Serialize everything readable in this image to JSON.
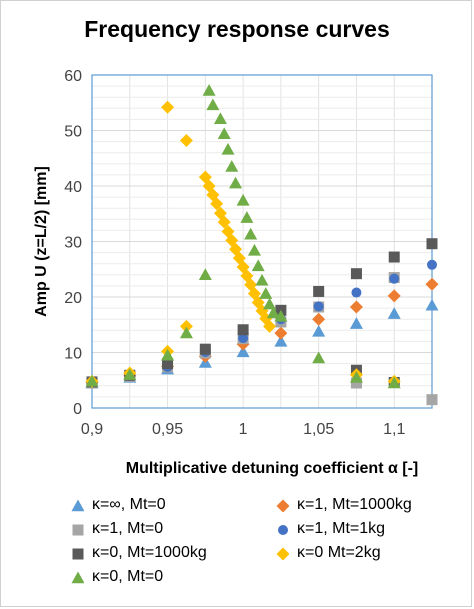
{
  "chart_data": {
    "type": "scatter",
    "title": "Frequency response curves",
    "xlabel": "Multiplicative detuning coefficient α [-]",
    "ylabel": "Amp U (z=L/2) [mm]",
    "xlim": [
      0.9,
      1.125
    ],
    "ylim": [
      0,
      60
    ],
    "x_ticks": [
      "0,9",
      "0,95",
      "1",
      "1,05",
      "1,1"
    ],
    "y_ticks": [
      "0",
      "10",
      "20",
      "30",
      "40",
      "50",
      "60"
    ],
    "grid": true,
    "legend_position": "bottom",
    "series": [
      {
        "name": "κ=∞, Mt=0",
        "marker": "triangle",
        "color": "#5b9bd5",
        "points": [
          [
            0.9,
            4.5
          ],
          [
            0.925,
            5.5
          ],
          [
            0.95,
            7
          ],
          [
            0.975,
            8.2
          ],
          [
            1.0,
            10.1
          ],
          [
            1.025,
            12
          ],
          [
            1.05,
            13.8
          ],
          [
            1.075,
            15.2
          ],
          [
            1.1,
            17
          ],
          [
            1.125,
            18.5
          ]
        ]
      },
      {
        "name": "κ=1, Mt=1000kg",
        "marker": "diamond",
        "color": "#ed7d31",
        "points": [
          [
            0.9,
            4.6
          ],
          [
            0.925,
            5.8
          ],
          [
            0.95,
            7.5
          ],
          [
            0.975,
            9.3
          ],
          [
            1.0,
            11.5
          ],
          [
            1.025,
            13.5
          ],
          [
            1.05,
            16
          ],
          [
            1.075,
            18.2
          ],
          [
            1.1,
            20.2
          ],
          [
            1.125,
            22.3
          ]
        ]
      },
      {
        "name": "κ=1, Mt=0",
        "marker": "square",
        "color": "#a5a5a5",
        "points": [
          [
            0.9,
            4.5
          ],
          [
            0.925,
            5.7
          ],
          [
            0.95,
            7.4
          ],
          [
            0.975,
            9.9
          ],
          [
            1.0,
            12.5
          ],
          [
            1.025,
            15.5
          ],
          [
            1.05,
            18.2
          ],
          [
            1.075,
            4.5
          ],
          [
            1.1,
            23.5
          ],
          [
            1.125,
            1.5
          ]
        ]
      },
      {
        "name": "κ=1, Mt=1kg",
        "marker": "circle",
        "color": "#4472c4",
        "points": [
          [
            0.9,
            4.6
          ],
          [
            0.925,
            5.8
          ],
          [
            0.95,
            7.4
          ],
          [
            0.975,
            10.1
          ],
          [
            1.0,
            12.6
          ],
          [
            1.025,
            16
          ],
          [
            1.05,
            18.3
          ],
          [
            1.075,
            20.8
          ],
          [
            1.1,
            23.3
          ],
          [
            1.125,
            25.8
          ]
        ]
      },
      {
        "name": "κ=0, Mt=1000kg",
        "marker": "square",
        "color": "#595959",
        "points": [
          [
            0.9,
            4.7
          ],
          [
            0.925,
            5.9
          ],
          [
            0.95,
            8
          ],
          [
            0.975,
            10.6
          ],
          [
            1.0,
            14.1
          ],
          [
            1.025,
            17.6
          ],
          [
            1.05,
            21
          ],
          [
            1.075,
            24.2
          ],
          [
            1.1,
            27.2
          ],
          [
            1.125,
            29.6
          ],
          [
            1.075,
            6.8
          ],
          [
            1.1,
            4.6
          ]
        ]
      },
      {
        "name": "κ=0 Mt=2kg",
        "marker": "diamond",
        "color": "#ffc000",
        "points": [
          [
            0.9,
            4.8
          ],
          [
            0.925,
            6.3
          ],
          [
            0.95,
            10.2
          ],
          [
            0.9625,
            14.7
          ],
          [
            0.95,
            54.2
          ],
          [
            0.9625,
            48.2
          ],
          [
            0.975,
            41.6
          ],
          [
            0.9775,
            40
          ],
          [
            0.98,
            38.4
          ],
          [
            0.9825,
            36.8
          ],
          [
            0.985,
            35.1
          ],
          [
            0.9875,
            33.5
          ],
          [
            0.99,
            31.8
          ],
          [
            0.9925,
            30.2
          ],
          [
            0.995,
            28.6
          ],
          [
            0.9975,
            27
          ],
          [
            1.0,
            25.4
          ],
          [
            1.0025,
            23.8
          ],
          [
            1.005,
            22.2
          ],
          [
            1.0075,
            20.6
          ],
          [
            1.01,
            19
          ],
          [
            1.0125,
            17.5
          ],
          [
            1.015,
            16.1
          ],
          [
            1.0175,
            14.7
          ],
          [
            1.075,
            6
          ],
          [
            1.1,
            4.8
          ]
        ]
      },
      {
        "name": "κ=0, Mt=0",
        "marker": "triangle",
        "color": "#70ad47",
        "points": [
          [
            0.9,
            4.8
          ],
          [
            0.925,
            6
          ],
          [
            0.95,
            9.5
          ],
          [
            0.9625,
            13.5
          ],
          [
            0.975,
            24
          ],
          [
            0.9775,
            57.2
          ],
          [
            0.98,
            54.6
          ],
          [
            0.985,
            52.1
          ],
          [
            0.9875,
            49.4
          ],
          [
            0.99,
            46.6
          ],
          [
            0.9925,
            43.5
          ],
          [
            0.995,
            40.5
          ],
          [
            1.0,
            37.4
          ],
          [
            1.0025,
            34.3
          ],
          [
            1.005,
            31.3
          ],
          [
            1.0075,
            28.4
          ],
          [
            1.01,
            25.6
          ],
          [
            1.0125,
            23
          ],
          [
            1.015,
            20.6
          ],
          [
            1.0175,
            18.7
          ],
          [
            1.02,
            17.1
          ],
          [
            1.025,
            16.5
          ],
          [
            1.05,
            9
          ],
          [
            1.075,
            5.5
          ],
          [
            1.1,
            4.5
          ]
        ]
      }
    ]
  }
}
